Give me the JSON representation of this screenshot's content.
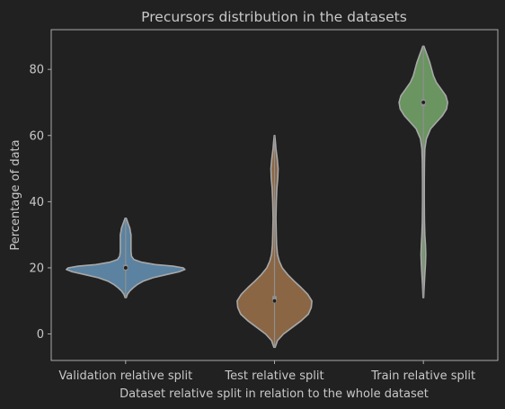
{
  "chart_data": {
    "type": "violin",
    "title": "Precursors distribution in the datasets",
    "xlabel": "Dataset relative split in relation to the whole dataset",
    "ylabel": "Percentage of data",
    "ylim": [
      -8,
      92
    ],
    "yticks": [
      0,
      20,
      40,
      60,
      80
    ],
    "grid": false,
    "categories": [
      "Validation relative split",
      "Test relative split",
      "Train relative split"
    ],
    "series": [
      {
        "color": "#5b82a0",
        "range": [
          11,
          35
        ],
        "quartiles": [
          19.2,
          20,
          21
        ],
        "density": [
          [
            11,
            0.01
          ],
          [
            12,
            0.03
          ],
          [
            13,
            0.07
          ],
          [
            14,
            0.13
          ],
          [
            15,
            0.2
          ],
          [
            16,
            0.3
          ],
          [
            17,
            0.46
          ],
          [
            18,
            0.7
          ],
          [
            18.8,
            0.9
          ],
          [
            19.5,
            1.0
          ],
          [
            20,
            0.97
          ],
          [
            20.5,
            0.8
          ],
          [
            21,
            0.5
          ],
          [
            21.7,
            0.27
          ],
          [
            22.5,
            0.14
          ],
          [
            23.5,
            0.1
          ],
          [
            25,
            0.09
          ],
          [
            27,
            0.09
          ],
          [
            28.5,
            0.09
          ],
          [
            30,
            0.09
          ],
          [
            31,
            0.08
          ],
          [
            32,
            0.07
          ],
          [
            33,
            0.05
          ],
          [
            34,
            0.03
          ],
          [
            35,
            0.01
          ]
        ]
      },
      {
        "color": "#8a6644",
        "range": [
          -4,
          60
        ],
        "quartiles": [
          9.5,
          10,
          11.5
        ],
        "density": [
          [
            -4,
            0.01
          ],
          [
            -2,
            0.05
          ],
          [
            0,
            0.15
          ],
          [
            2,
            0.3
          ],
          [
            4,
            0.45
          ],
          [
            6,
            0.57
          ],
          [
            8,
            0.62
          ],
          [
            10,
            0.63
          ],
          [
            12,
            0.56
          ],
          [
            14,
            0.45
          ],
          [
            16,
            0.33
          ],
          [
            18,
            0.22
          ],
          [
            20,
            0.13
          ],
          [
            22,
            0.08
          ],
          [
            24,
            0.05
          ],
          [
            27,
            0.035
          ],
          [
            30,
            0.03
          ],
          [
            35,
            0.025
          ],
          [
            40,
            0.03
          ],
          [
            44,
            0.04
          ],
          [
            47,
            0.055
          ],
          [
            50,
            0.06
          ],
          [
            53,
            0.045
          ],
          [
            56,
            0.025
          ],
          [
            58,
            0.015
          ],
          [
            60,
            0.005
          ]
        ]
      },
      {
        "color": "#6a9460",
        "range": [
          11,
          87
        ],
        "quartiles": [
          68.8,
          70,
          71
        ],
        "density": [
          [
            11,
            0.005
          ],
          [
            13,
            0.01
          ],
          [
            15,
            0.015
          ],
          [
            18,
            0.025
          ],
          [
            21,
            0.035
          ],
          [
            24,
            0.04
          ],
          [
            27,
            0.035
          ],
          [
            30,
            0.025
          ],
          [
            34,
            0.018
          ],
          [
            40,
            0.015
          ],
          [
            46,
            0.015
          ],
          [
            52,
            0.018
          ],
          [
            56,
            0.025
          ],
          [
            59,
            0.05
          ],
          [
            62,
            0.12
          ],
          [
            64,
            0.22
          ],
          [
            66,
            0.32
          ],
          [
            68,
            0.39
          ],
          [
            70,
            0.41
          ],
          [
            72,
            0.38
          ],
          [
            74,
            0.3
          ],
          [
            76,
            0.22
          ],
          [
            78,
            0.17
          ],
          [
            80,
            0.14
          ],
          [
            82,
            0.11
          ],
          [
            84,
            0.07
          ],
          [
            86,
            0.03
          ],
          [
            87,
            0.01
          ]
        ]
      }
    ]
  }
}
